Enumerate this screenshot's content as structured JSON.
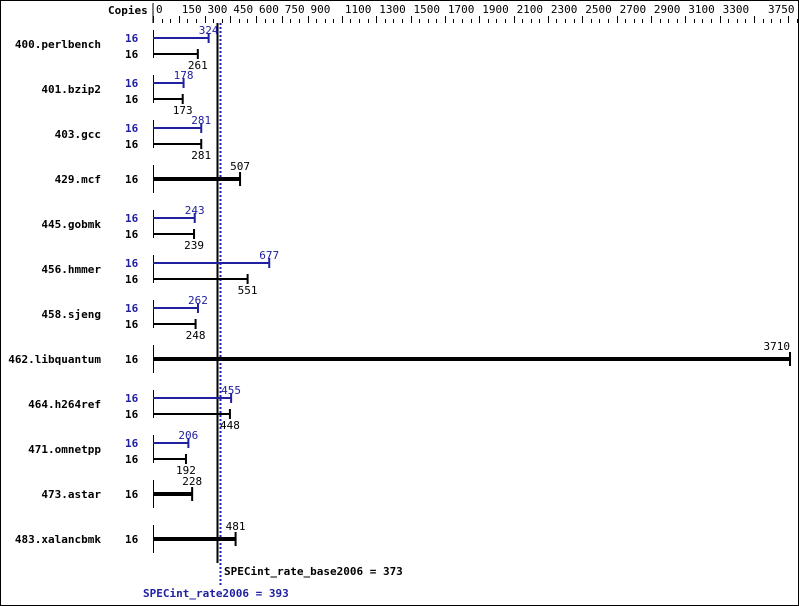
{
  "chart_data": {
    "type": "bar",
    "orientation": "horizontal",
    "axis_header": "Copies",
    "x_ticks": [
      0,
      150,
      300,
      450,
      600,
      750,
      900,
      1100,
      1300,
      1500,
      1700,
      1900,
      2100,
      2300,
      2500,
      2700,
      2900,
      3100,
      3300,
      3750
    ],
    "xlim": [
      0,
      3750
    ],
    "colors": {
      "peak": "#2020a0",
      "base": "#000000"
    },
    "benchmarks": [
      {
        "name": "400.perlbench",
        "peak_copies": "16",
        "base_copies": "16",
        "peak": 324,
        "base": 261
      },
      {
        "name": "401.bzip2",
        "peak_copies": "16",
        "base_copies": "16",
        "peak": 178,
        "base": 173
      },
      {
        "name": "403.gcc",
        "peak_copies": "16",
        "base_copies": "16",
        "peak": 281,
        "base": 281
      },
      {
        "name": "429.mcf",
        "base_copies": "16",
        "base": 507
      },
      {
        "name": "445.gobmk",
        "peak_copies": "16",
        "base_copies": "16",
        "peak": 243,
        "base": 239
      },
      {
        "name": "456.hmmer",
        "peak_copies": "16",
        "base_copies": "16",
        "peak": 677,
        "base": 551
      },
      {
        "name": "458.sjeng",
        "peak_copies": "16",
        "base_copies": "16",
        "peak": 262,
        "base": 248
      },
      {
        "name": "462.libquantum",
        "base_copies": "16",
        "base": 3710
      },
      {
        "name": "464.h264ref",
        "peak_copies": "16",
        "base_copies": "16",
        "peak": 455,
        "base": 448
      },
      {
        "name": "471.omnetpp",
        "peak_copies": "16",
        "base_copies": "16",
        "peak": 206,
        "base": 192
      },
      {
        "name": "473.astar",
        "base_copies": "16",
        "base": 228
      },
      {
        "name": "483.xalancbmk",
        "base_copies": "16",
        "base": 481
      }
    ],
    "base_metric": {
      "label": "SPECint_rate_base2006 = 373",
      "value": 373
    },
    "peak_metric": {
      "label": "SPECint_rate2006 = 393",
      "value": 393
    }
  }
}
